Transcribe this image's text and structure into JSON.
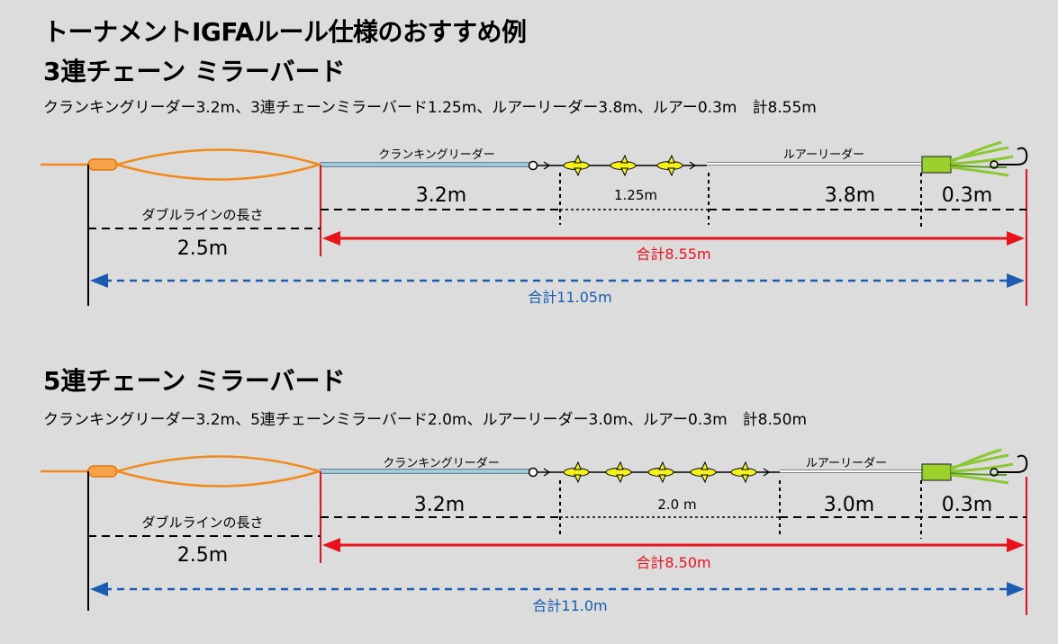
{
  "page_title": "トーナメントIGFAルール仕様のおすすめ例",
  "sections": [
    {
      "title": "3連チェーン ミラーバード",
      "description": "クランキングリーダー3.2m、3連チェーンミラーバード1.25m、ルアーリーダー3.8m、ルアー0.3m　計8.55m",
      "labels": {
        "cranking_leader": "クランキングリーダー",
        "lure_leader": "ルアーリーダー",
        "double_line": "ダブルラインの長さ"
      },
      "lengths": {
        "cranking": "3.2m",
        "chain": "1.25m",
        "lure_leader": "3.8m",
        "lure": "0.3m",
        "double_line": "2.5m"
      },
      "totals": {
        "red": "合計8.55m",
        "blue": "合計11.05m"
      },
      "bird_count": 3
    },
    {
      "title": "5連チェーン ミラーバード",
      "description": "クランキングリーダー3.2m、5連チェーンミラーバード2.0m、ルアーリーダー3.0m、ルアー0.3m　計8.50m",
      "labels": {
        "cranking_leader": "クランキングリーダー",
        "lure_leader": "ルアーリーダー",
        "double_line": "ダブルラインの長さ"
      },
      "lengths": {
        "cranking": "3.2m",
        "chain": "2.0 m",
        "lure_leader": "3.0m",
        "lure": "0.3m",
        "double_line": "2.5m"
      },
      "totals": {
        "red": "合計8.50m",
        "blue": "合計11.0m"
      },
      "bird_count": 5
    }
  ],
  "colors": {
    "line_orange": "#f08a1c",
    "leader_blue": "#a8cfe0",
    "red": "#e8121a",
    "blue": "#1a5cb0",
    "bird_yellow": "#f5f11a",
    "lure_green": "#9bd12a"
  }
}
